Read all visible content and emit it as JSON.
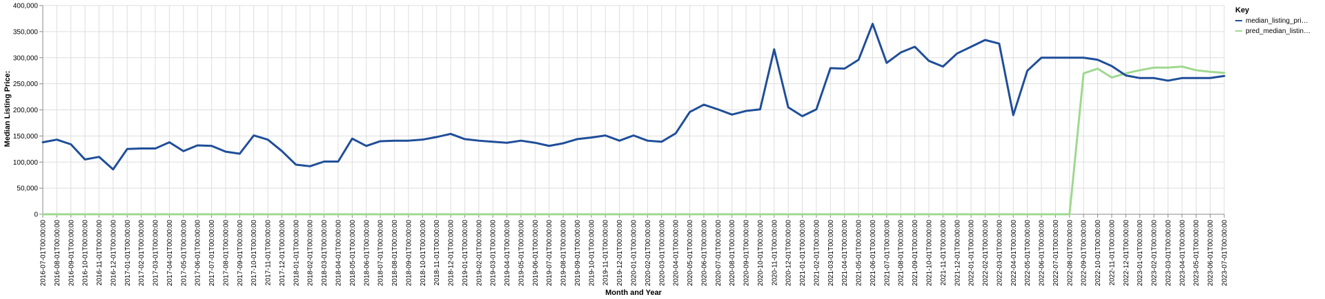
{
  "chart_data": {
    "type": "line",
    "xlabel": "Month and Year",
    "ylabel": "Median Listing Price:",
    "ylim": [
      0,
      400000
    ],
    "yticks": [
      "0",
      "50,000",
      "100,000",
      "150,000",
      "200,000",
      "250,000",
      "300,000",
      "350,000",
      "400,000"
    ],
    "grid": true,
    "legend_title": "Key",
    "legend_position": "right",
    "x": [
      "2016-07-01T00:00:00",
      "2016-08-01T00:00:00",
      "2016-09-01T00:00:00",
      "2016-10-01T00:00:00",
      "2016-11-01T00:00:00",
      "2016-12-01T00:00:00",
      "2017-01-01T00:00:00",
      "2017-02-01T00:00:00",
      "2017-03-01T00:00:00",
      "2017-04-01T00:00:00",
      "2017-05-01T00:00:00",
      "2017-06-01T00:00:00",
      "2017-07-01T00:00:00",
      "2017-08-01T00:00:00",
      "2017-09-01T00:00:00",
      "2017-10-01T00:00:00",
      "2017-11-01T00:00:00",
      "2017-12-01T00:00:00",
      "2018-01-01T00:00:00",
      "2018-02-01T00:00:00",
      "2018-03-01T00:00:00",
      "2018-04-01T00:00:00",
      "2018-05-01T00:00:00",
      "2018-06-01T00:00:00",
      "2018-07-01T00:00:00",
      "2018-08-01T00:00:00",
      "2018-09-01T00:00:00",
      "2018-10-01T00:00:00",
      "2018-11-01T00:00:00",
      "2018-12-01T00:00:00",
      "2019-01-01T00:00:00",
      "2019-02-01T00:00:00",
      "2019-03-01T00:00:00",
      "2019-04-01T00:00:00",
      "2019-05-01T00:00:00",
      "2019-06-01T00:00:00",
      "2019-07-01T00:00:00",
      "2019-08-01T00:00:00",
      "2019-09-01T00:00:00",
      "2019-10-01T00:00:00",
      "2019-11-01T00:00:00",
      "2019-12-01T00:00:00",
      "2020-01-01T00:00:00",
      "2020-02-01T00:00:00",
      "2020-03-01T00:00:00",
      "2020-04-01T00:00:00",
      "2020-05-01T00:00:00",
      "2020-06-01T00:00:00",
      "2020-07-01T00:00:00",
      "2020-08-01T00:00:00",
      "2020-09-01T00:00:00",
      "2020-10-01T00:00:00",
      "2020-11-01T00:00:00",
      "2020-12-01T00:00:00",
      "2021-01-01T00:00:00",
      "2021-02-01T00:00:00",
      "2021-03-01T00:00:00",
      "2021-04-01T00:00:00",
      "2021-05-01T00:00:00",
      "2021-06-01T00:00:00",
      "2021-07-01T00:00:00",
      "2021-08-01T00:00:00",
      "2021-09-01T00:00:00",
      "2021-10-01T00:00:00",
      "2021-11-01T00:00:00",
      "2021-12-01T00:00:00",
      "2022-01-01T00:00:00",
      "2022-02-01T00:00:00",
      "2022-03-01T00:00:00",
      "2022-04-01T00:00:00",
      "2022-05-01T00:00:00",
      "2022-06-01T00:00:00",
      "2022-07-01T00:00:00",
      "2022-08-01T00:00:00",
      "2022-09-01T00:00:00",
      "2022-10-01T00:00:00",
      "2022-11-01T00:00:00",
      "2022-12-01T00:00:00",
      "2023-01-01T00:00:00",
      "2023-02-01T00:00:00",
      "2023-03-01T00:00:00",
      "2023-04-01T00:00:00",
      "2023-05-01T00:00:00",
      "2023-06-01T00:00:00",
      "2023-07-01T00:00:00"
    ],
    "series": [
      {
        "name": "median_listing_pri…",
        "color": "#1f4e99",
        "values": [
          138000,
          143000,
          134000,
          105000,
          110000,
          86000,
          125000,
          126000,
          126000,
          138000,
          121000,
          132000,
          131000,
          120000,
          116000,
          151000,
          143000,
          121000,
          95000,
          92000,
          101000,
          101000,
          145000,
          131000,
          140000,
          141000,
          141000,
          143000,
          148000,
          154000,
          144000,
          141000,
          139000,
          137000,
          141000,
          137000,
          131000,
          136000,
          144000,
          147000,
          151000,
          141000,
          151000,
          141000,
          139000,
          155000,
          196000,
          210000,
          201000,
          191000,
          198000,
          201000,
          316000,
          205000,
          188000,
          201000,
          280000,
          279000,
          296000,
          365000,
          290000,
          310000,
          321000,
          294000,
          283000,
          308000,
          321000,
          334000,
          327000,
          190000,
          275000,
          300000,
          300000,
          300000,
          300000,
          296000,
          284000,
          266000,
          261000,
          261000,
          256000,
          261000,
          261000,
          261000,
          265000
        ]
      },
      {
        "name": "pred_median_listin…",
        "color": "#9fd88f",
        "values": [
          0,
          0,
          0,
          0,
          0,
          0,
          0,
          0,
          0,
          0,
          0,
          0,
          0,
          0,
          0,
          0,
          0,
          0,
          0,
          0,
          0,
          0,
          0,
          0,
          0,
          0,
          0,
          0,
          0,
          0,
          0,
          0,
          0,
          0,
          0,
          0,
          0,
          0,
          0,
          0,
          0,
          0,
          0,
          0,
          0,
          0,
          0,
          0,
          0,
          0,
          0,
          0,
          0,
          0,
          0,
          0,
          0,
          0,
          0,
          0,
          0,
          0,
          0,
          0,
          0,
          0,
          0,
          0,
          0,
          0,
          0,
          0,
          0,
          0,
          270000,
          279000,
          262000,
          270000,
          276000,
          281000,
          281000,
          283000,
          276000,
          273000,
          271000
        ]
      }
    ]
  }
}
